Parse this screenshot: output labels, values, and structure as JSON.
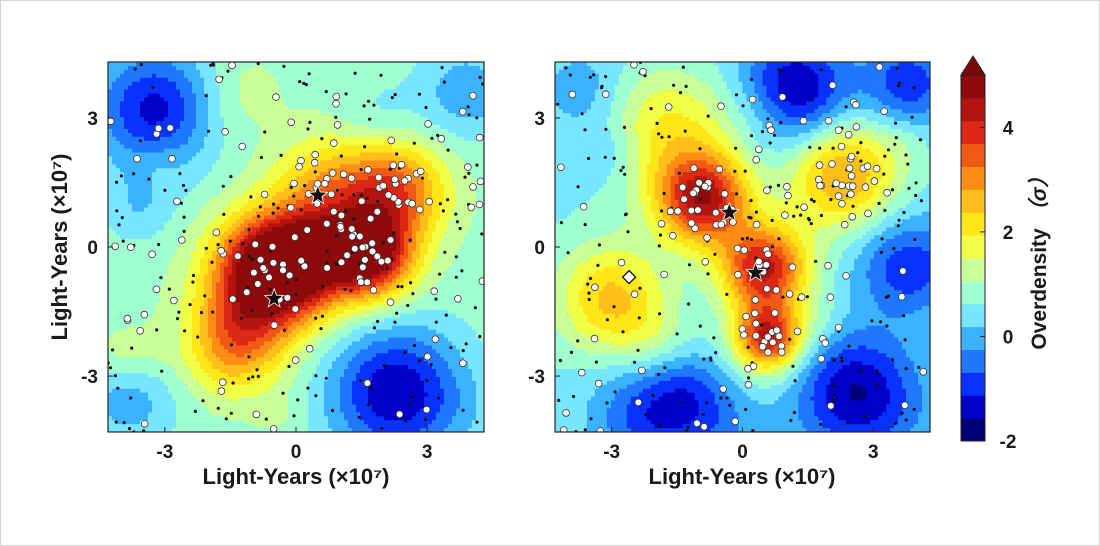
{
  "colorbar": {
    "label": "Overdensity (σ)",
    "label_text": "Overdensity",
    "label_unit": "（σ）",
    "ticks": [
      "-2",
      "0",
      "2",
      "4"
    ],
    "tick_values": [
      -2,
      0,
      2,
      4
    ],
    "range": [
      -2,
      5
    ],
    "colors": [
      "#00007a",
      "#0000c8",
      "#0a32ff",
      "#1f78ff",
      "#3cb2ff",
      "#78e6ff",
      "#a0ffd0",
      "#c8ff96",
      "#f0ff46",
      "#ffe619",
      "#ffbe19",
      "#ff8c14",
      "#f05a14",
      "#dc2814",
      "#b4140f",
      "#8c0a0a"
    ],
    "extend_color": "#7a0a0a"
  },
  "chart_data": [
    {
      "type": "heatmap",
      "panel": "left",
      "xlabel": "Light-Years (×10⁷)",
      "ylabel": "Light-Years (×10⁷)",
      "xticks": [
        "-3",
        "0",
        "3"
      ],
      "yticks": [
        "3",
        "0",
        "-3"
      ],
      "xlim": [
        -4.3,
        4.3
      ],
      "ylim": [
        -4.3,
        4.3
      ],
      "field_peaks": [
        {
          "x": -0.6,
          "y": -0.6,
          "amp": 4.4,
          "sigma": 0.9
        },
        {
          "x": 1.7,
          "y": -0.2,
          "amp": 3.9,
          "sigma": 0.7
        },
        {
          "x": 2.3,
          "y": 1.3,
          "amp": 2.4,
          "sigma": 0.8
        },
        {
          "x": 0.8,
          "y": 1.3,
          "amp": 1.7,
          "sigma": 0.9
        },
        {
          "x": -1.4,
          "y": -2.2,
          "amp": 2.2,
          "sigma": 0.8
        },
        {
          "x": 0.3,
          "y": -0.3,
          "amp": 2.4,
          "sigma": 0.8
        },
        {
          "x": -3.2,
          "y": 3.2,
          "amp": -2.2,
          "sigma": 1.0
        },
        {
          "x": 2.3,
          "y": -3.4,
          "amp": -2.4,
          "sigma": 1.1
        },
        {
          "x": 3.9,
          "y": 3.6,
          "amp": -1.0,
          "sigma": 0.8
        },
        {
          "x": -3.8,
          "y": -3.6,
          "amp": -0.9,
          "sigma": 0.8
        },
        {
          "x": -3.6,
          "y": 0.9,
          "amp": -0.6,
          "sigma": 0.6
        }
      ],
      "base": 0.9,
      "stars": [
        {
          "x": 0.5,
          "y": 1.2
        },
        {
          "x": -0.5,
          "y": -1.2
        }
      ],
      "diamonds": []
    },
    {
      "type": "heatmap",
      "panel": "right",
      "xlabel": "Light-Years (×10⁷)",
      "ylabel": "",
      "xticks": [
        "-3",
        "0",
        "3"
      ],
      "yticks": [
        "3",
        "0",
        "-3"
      ],
      "xlim": [
        -4.3,
        4.3
      ],
      "ylim": [
        -4.3,
        4.3
      ],
      "field_peaks": [
        {
          "x": -0.9,
          "y": 1.1,
          "amp": 3.8,
          "sigma": 0.75
        },
        {
          "x": 0.5,
          "y": -0.5,
          "amp": 3.7,
          "sigma": 0.7
        },
        {
          "x": 0.6,
          "y": -2.1,
          "amp": 3.6,
          "sigma": 0.55
        },
        {
          "x": 2.3,
          "y": 1.7,
          "amp": 2.4,
          "sigma": 0.9
        },
        {
          "x": -3.0,
          "y": -1.2,
          "amp": 2.0,
          "sigma": 0.9
        },
        {
          "x": -1.7,
          "y": 2.6,
          "amp": 1.4,
          "sigma": 1.0
        },
        {
          "x": 1.2,
          "y": 3.6,
          "amp": -2.2,
          "sigma": 0.9
        },
        {
          "x": 3.8,
          "y": -0.4,
          "amp": -1.6,
          "sigma": 0.8
        },
        {
          "x": 2.6,
          "y": -3.4,
          "amp": -2.1,
          "sigma": 1.0
        },
        {
          "x": -2.0,
          "y": -3.9,
          "amp": -1.6,
          "sigma": 0.9
        },
        {
          "x": 3.8,
          "y": 3.8,
          "amp": -1.5,
          "sigma": 0.7
        },
        {
          "x": -3.6,
          "y": 3.6,
          "amp": -0.6,
          "sigma": 0.7
        }
      ],
      "base": 0.5,
      "stars": [
        {
          "x": -0.3,
          "y": 0.8
        },
        {
          "x": 0.3,
          "y": -0.6
        }
      ],
      "diamonds": [
        {
          "x": -2.6,
          "y": -0.7
        }
      ]
    }
  ]
}
